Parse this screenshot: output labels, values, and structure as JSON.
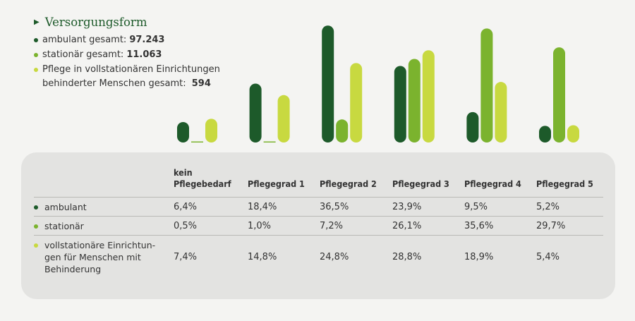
{
  "legend": {
    "title": "Versorgungsform",
    "items": [
      {
        "label": "ambulant gesamt:",
        "value": "97.243",
        "color": "#1d5a2a"
      },
      {
        "label": "stationär gesamt:",
        "value": "11.063",
        "color": "#7bb32e"
      },
      {
        "label_line1": "Pflege in vollstationären Einrichtungen",
        "label_line2": "behinderter Menschen gesamt:",
        "value": "594",
        "color": "#c8d940"
      }
    ]
  },
  "table": {
    "headers": [
      "kein Pflegebedarf",
      "Pflegegrad 1",
      "Pflegegrad 2",
      "Pflegegrad 3",
      "Pflegegrad 4",
      "Pflegegrad 5"
    ],
    "header0_line1": "kein",
    "header0_line2": "Pflegebedarf",
    "rows": [
      {
        "label": "ambulant",
        "values": [
          "6,4%",
          "18,4%",
          "36,5%",
          "23,9%",
          "9,5%",
          "5,2%"
        ]
      },
      {
        "label": "stationär",
        "values": [
          "0,5%",
          "1,0%",
          "7,2%",
          "26,1%",
          "35,6%",
          "29,7%"
        ]
      },
      {
        "label_lines": [
          "vollstationäre Einrichtun-",
          "gen für Menschen mit",
          "Behinderung"
        ],
        "values": [
          "7,4%",
          "14,8%",
          "24,8%",
          "28,8%",
          "18,9%",
          "5,4%"
        ]
      }
    ]
  },
  "chart_data": {
    "type": "bar",
    "categories": [
      "kein Pflegebedarf",
      "Pflegegrad 1",
      "Pflegegrad 2",
      "Pflegegrad 3",
      "Pflegegrad 4",
      "Pflegegrad 5"
    ],
    "series": [
      {
        "name": "ambulant",
        "color": "#1d5a2a",
        "values": [
          6.4,
          18.4,
          36.5,
          23.9,
          9.5,
          5.2
        ]
      },
      {
        "name": "stationär",
        "color": "#7bb32e",
        "values": [
          0.5,
          1.0,
          7.2,
          26.1,
          35.6,
          29.7
        ]
      },
      {
        "name": "vollstationäre Einrichtungen für Menschen mit Behinderung",
        "color": "#c8d940",
        "values": [
          7.4,
          14.8,
          24.8,
          28.8,
          18.9,
          5.4
        ]
      }
    ],
    "ylim": [
      0,
      37
    ],
    "grid": false,
    "legend": "top-left"
  }
}
